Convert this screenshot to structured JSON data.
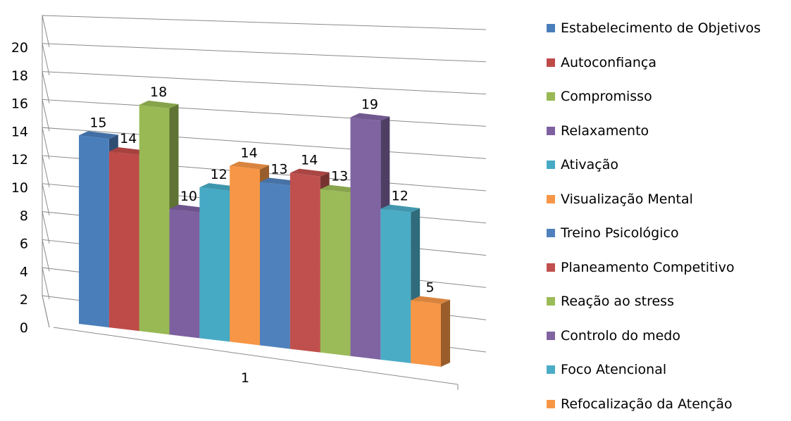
{
  "chart_data": {
    "type": "bar",
    "categories": [
      "1"
    ],
    "series": [
      {
        "name": "Estabelecimento de Objetivos",
        "values": [
          15
        ],
        "color": "#4A7EBB"
      },
      {
        "name": "Autoconfiança",
        "values": [
          14
        ],
        "color": "#BE4B48"
      },
      {
        "name": "Compromisso",
        "values": [
          18
        ],
        "color": "#98B954"
      },
      {
        "name": "Relaxamento",
        "values": [
          10
        ],
        "color": "#7D60A0"
      },
      {
        "name": "Ativação",
        "values": [
          12
        ],
        "color": "#46AAC5"
      },
      {
        "name": "Visualização Mental",
        "values": [
          14
        ],
        "color": "#F79646"
      },
      {
        "name": "Treino Psicológico",
        "values": [
          13
        ],
        "color": "#4F81BD"
      },
      {
        "name": "Planeamento Competitivo",
        "values": [
          14
        ],
        "color": "#C0504D"
      },
      {
        "name": "Reação ao stress",
        "values": [
          13
        ],
        "color": "#9BBB59"
      },
      {
        "name": "Controlo do medo",
        "values": [
          19
        ],
        "color": "#8064A2"
      },
      {
        "name": "Foco Atencional",
        "values": [
          12
        ],
        "color": "#4BACC6"
      },
      {
        "name": "Refocalização da Atenção",
        "values": [
          5
        ],
        "color": "#F79646"
      }
    ],
    "data_labels": [
      "15",
      "14",
      "18",
      "10",
      "12",
      "14",
      "13",
      "14",
      "13",
      "19",
      "12",
      "5"
    ],
    "y_ticks": [
      "0",
      "2",
      "4",
      "6",
      "8",
      "10",
      "12",
      "14",
      "16",
      "18",
      "20"
    ],
    "ylim": [
      0,
      20
    ],
    "grid": true,
    "legend_position": "right",
    "title": "",
    "xlabel": "",
    "ylabel": ""
  }
}
